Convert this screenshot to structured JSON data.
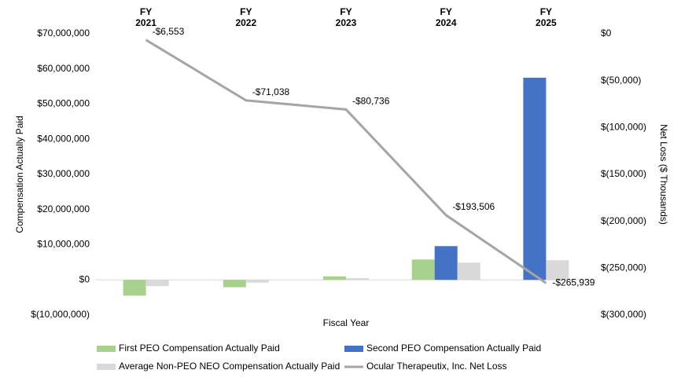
{
  "chart_data": {
    "type": "bar",
    "categories": [
      "FY 2021",
      "FY 2022",
      "FY 2023",
      "FY 2024",
      "FY 2025"
    ],
    "x_label": "Fiscal Year",
    "y_label": "Compensation  Actually Paid",
    "y2_label": "Net Loss ($ Thousands)",
    "series": [
      {
        "name": "First PEO Compensation Actually Paid",
        "color": "#a9d18e",
        "values": [
          -4500000,
          -2100000,
          1000000,
          5800000,
          null
        ]
      },
      {
        "name": "Second PEO Compensation Actually Paid",
        "color": "#4472c4",
        "values": [
          null,
          null,
          null,
          9600000,
          57500000
        ]
      },
      {
        "name": "Average Non-PEO NEO Compensation Actually Paid",
        "color": "#d9d9d9",
        "values": [
          -1800000,
          -800000,
          500000,
          4900000,
          5600000
        ]
      },
      {
        "name": "Ocular Therapeutix, Inc. Net Loss",
        "color": "#a5a5a5",
        "type": "line",
        "axis": "y2",
        "values": [
          -6553,
          -71038,
          -80736,
          -193506,
          -265939
        ],
        "value_labels": [
          "-$6,553",
          "-$71,038",
          "-$80,736",
          "-$193,506",
          "-$265,939"
        ]
      }
    ],
    "ylim": [
      -10000000,
      70000000
    ],
    "yticks": [
      {
        "value": -10000000,
        "label": "$(10,000,000)"
      },
      {
        "value": 0,
        "label": "$0"
      },
      {
        "value": 10000000,
        "label": "$10,000,000"
      },
      {
        "value": 20000000,
        "label": "$20,000,000"
      },
      {
        "value": 30000000,
        "label": "$30,000,000"
      },
      {
        "value": 40000000,
        "label": "$40,000,000"
      },
      {
        "value": 50000000,
        "label": "$50,000,000"
      },
      {
        "value": 60000000,
        "label": "$60,000,000"
      },
      {
        "value": 70000000,
        "label": "$70,000,000"
      }
    ],
    "y2lim": [
      -300000,
      0
    ],
    "y2ticks": [
      {
        "value": -300000,
        "label": "$(300,000)"
      },
      {
        "value": -250000,
        "label": "$(250,000)"
      },
      {
        "value": -200000,
        "label": "$(200,000)"
      },
      {
        "value": -150000,
        "label": "$(150,000)"
      },
      {
        "value": -100000,
        "label": "$(100,000)"
      },
      {
        "value": -50000,
        "label": "$(50,000)"
      },
      {
        "value": 0,
        "label": "$0"
      }
    ],
    "grid": false,
    "legend": "bottom"
  }
}
